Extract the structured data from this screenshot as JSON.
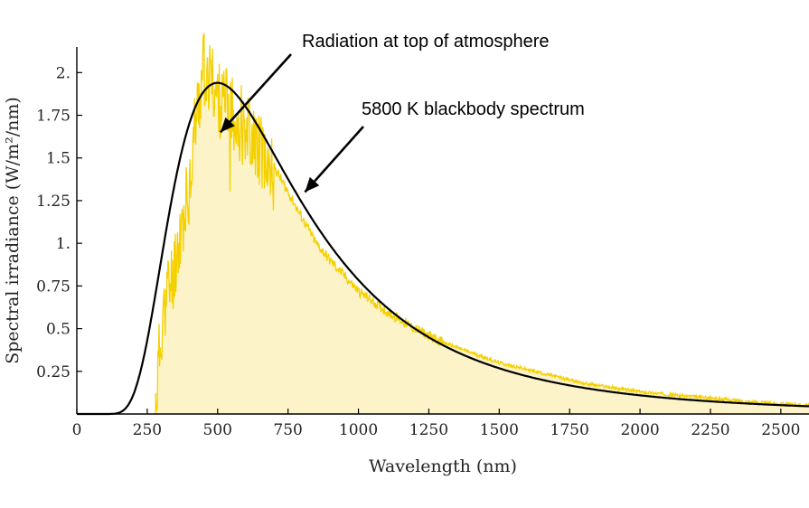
{
  "chart_data": {
    "type": "line",
    "title": "",
    "xlabel": "Wavelength (nm)",
    "ylabel": "Spectral irradiance (W/m²/nm)",
    "xlim": [
      0,
      2600
    ],
    "ylim": [
      0,
      2.15
    ],
    "x_ticks": [
      0,
      250,
      500,
      750,
      1000,
      1250,
      1500,
      1750,
      2000,
      2250,
      2500
    ],
    "x_tick_labels": [
      "0",
      "250",
      "500",
      "750",
      "1000",
      "1250",
      "1500",
      "1750",
      "2000",
      "2250",
      "2500"
    ],
    "y_ticks": [
      0.25,
      0.5,
      0.75,
      1.0,
      1.25,
      1.5,
      1.75,
      2.0
    ],
    "y_tick_labels": [
      "0.25",
      "0.5",
      "0.75",
      "1.",
      "1.25",
      "1.5",
      "1.75",
      "2."
    ],
    "grid": false,
    "series": [
      {
        "name": "5800 K blackbody spectrum",
        "kind": "line",
        "color": "#000000",
        "temperature_K": 5800,
        "peak": {
          "x": 500,
          "y": 1.94
        }
      },
      {
        "name": "Radiation at top of atmosphere",
        "kind": "filled-area",
        "color": "#f5d000",
        "fill": "#fcf4c8",
        "x": [
          280,
          300,
          320,
          340,
          360,
          380,
          400,
          420,
          440,
          450,
          460,
          480,
          500,
          520,
          540,
          560,
          580,
          600,
          650,
          700,
          750,
          800,
          850,
          900,
          1000,
          1100,
          1200,
          1300,
          1400,
          1500,
          1600,
          1700,
          1800,
          2000,
          2200,
          2400,
          2600
        ],
        "y": [
          0.1,
          0.55,
          0.75,
          0.85,
          1.05,
          1.2,
          1.4,
          1.75,
          1.95,
          2.1,
          2.05,
          2.0,
          1.9,
          1.85,
          1.85,
          1.8,
          1.78,
          1.75,
          1.6,
          1.45,
          1.3,
          1.15,
          1.0,
          0.9,
          0.72,
          0.6,
          0.5,
          0.42,
          0.36,
          0.3,
          0.26,
          0.22,
          0.18,
          0.13,
          0.1,
          0.07,
          0.05
        ]
      }
    ],
    "annotations": [
      {
        "text": "Radiation at top of atmosphere",
        "arrow_to": {
          "x": 510,
          "y": 1.65
        }
      },
      {
        "text": "5800 K blackbody spectrum",
        "arrow_to": {
          "x": 810,
          "y": 1.3
        }
      }
    ]
  }
}
